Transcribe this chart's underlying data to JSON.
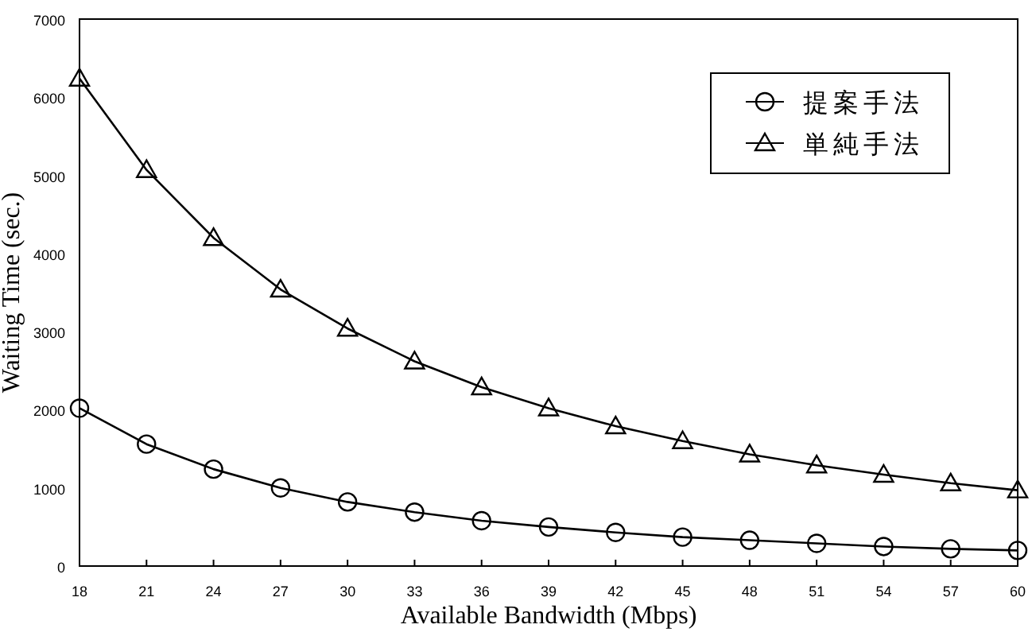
{
  "chart_data": {
    "type": "line",
    "xlabel": "Available Bandwidth (Mbps)",
    "ylabel": "Waiting Time (sec.)",
    "x": [
      18,
      21,
      24,
      27,
      30,
      33,
      36,
      39,
      42,
      45,
      48,
      51,
      54,
      57,
      60
    ],
    "xlim": [
      18,
      60
    ],
    "xticks": [
      18,
      21,
      24,
      27,
      30,
      33,
      36,
      39,
      42,
      45,
      48,
      51,
      54,
      57,
      60
    ],
    "ylim": [
      0,
      7000
    ],
    "yticks": [
      0,
      1000,
      2000,
      3000,
      4000,
      5000,
      6000,
      7000
    ],
    "legend": "top right",
    "line_style": "solid",
    "series": [
      {
        "name": "提案手法",
        "color": "#000000",
        "marker": "circle",
        "values": [
          2020,
          1560,
          1240,
          1000,
          820,
          690,
          580,
          500,
          430,
          370,
          330,
          290,
          250,
          220,
          200
        ]
      },
      {
        "name": "単純手法",
        "color": "#000000",
        "marker": "triangle",
        "values": [
          6240,
          5070,
          4200,
          3540,
          3040,
          2620,
          2290,
          2020,
          1790,
          1600,
          1430,
          1290,
          1170,
          1060,
          970
        ]
      }
    ]
  }
}
